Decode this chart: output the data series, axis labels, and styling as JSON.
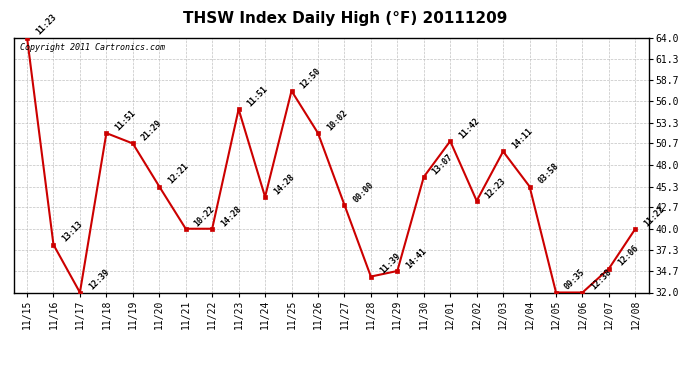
{
  "title": "THSW Index Daily High (°F) 20111209",
  "copyright": "Copyright 2011 Cartronics.com",
  "x_labels": [
    "11/15",
    "11/16",
    "11/17",
    "11/18",
    "11/19",
    "11/20",
    "11/21",
    "11/22",
    "11/23",
    "11/24",
    "11/25",
    "11/26",
    "11/27",
    "11/28",
    "11/29",
    "11/30",
    "12/01",
    "12/02",
    "12/03",
    "12/04",
    "12/05",
    "12/06",
    "12/07",
    "12/08"
  ],
  "y_values": [
    64.0,
    38.0,
    32.0,
    52.0,
    50.7,
    45.3,
    40.0,
    40.0,
    55.0,
    44.0,
    57.3,
    52.0,
    43.0,
    34.0,
    34.7,
    46.5,
    51.0,
    43.5,
    49.7,
    45.3,
    32.0,
    32.0,
    35.0,
    40.0
  ],
  "time_labels": [
    "11:23",
    "13:13",
    "12:39",
    "11:51",
    "21:29",
    "12:21",
    "10:22",
    "14:28",
    "11:51",
    "14:28",
    "12:50",
    "10:02",
    "00:00",
    "11:39",
    "14:41",
    "13:07",
    "11:42",
    "12:23",
    "14:11",
    "03:58",
    "09:35",
    "12:38",
    "12:06",
    "11:22"
  ],
  "y_ticks": [
    32.0,
    34.7,
    37.3,
    40.0,
    42.7,
    45.3,
    48.0,
    50.7,
    53.3,
    56.0,
    58.7,
    61.3,
    64.0
  ],
  "y_min": 32.0,
  "y_max": 64.0,
  "line_color": "#cc0000",
  "marker_color": "#cc0000",
  "bg_color": "#ffffff",
  "grid_color": "#bbbbbb",
  "title_fontsize": 11,
  "tick_fontsize": 7,
  "annot_fontsize": 6
}
